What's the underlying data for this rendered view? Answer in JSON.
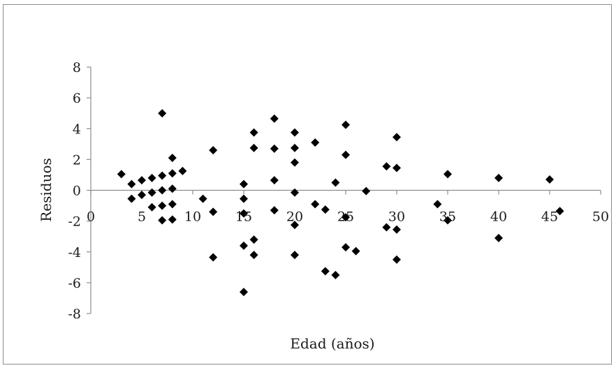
{
  "chart_data": {
    "type": "scatter",
    "title": "",
    "xlabel": "Edad (años)",
    "ylabel": "Residuos",
    "xlim": [
      0,
      50
    ],
    "ylim": [
      -8,
      8
    ],
    "x_ticks": [
      0,
      5,
      10,
      15,
      20,
      25,
      30,
      35,
      40,
      45,
      50
    ],
    "y_ticks": [
      8,
      6,
      4,
      2,
      0,
      -2,
      -4,
      -6,
      -8
    ],
    "grid": false,
    "marker": "diamond",
    "marker_color": "#000000",
    "series": [
      {
        "points": [
          {
            "x": 3,
            "y": 1.05
          },
          {
            "x": 4,
            "y": 0.4
          },
          {
            "x": 4,
            "y": -0.55
          },
          {
            "x": 5,
            "y": 0.65
          },
          {
            "x": 5,
            "y": -0.3
          },
          {
            "x": 6,
            "y": 0.8
          },
          {
            "x": 6,
            "y": -0.15
          },
          {
            "x": 6,
            "y": -1.1
          },
          {
            "x": 7,
            "y": 5.0
          },
          {
            "x": 7,
            "y": 0.95
          },
          {
            "x": 7,
            "y": 0.0
          },
          {
            "x": 7,
            "y": -1.0
          },
          {
            "x": 7,
            "y": -1.95
          },
          {
            "x": 8,
            "y": 2.1
          },
          {
            "x": 8,
            "y": 1.1
          },
          {
            "x": 8,
            "y": 0.1
          },
          {
            "x": 8,
            "y": -0.9
          },
          {
            "x": 8,
            "y": -1.9
          },
          {
            "x": 9,
            "y": 1.25
          },
          {
            "x": 11,
            "y": -0.55
          },
          {
            "x": 12,
            "y": 2.6
          },
          {
            "x": 12,
            "y": -1.4
          },
          {
            "x": 12,
            "y": -4.35
          },
          {
            "x": 15,
            "y": 0.4
          },
          {
            "x": 15,
            "y": -0.55
          },
          {
            "x": 15,
            "y": -1.5
          },
          {
            "x": 15,
            "y": -3.6
          },
          {
            "x": 15,
            "y": -6.6
          },
          {
            "x": 16,
            "y": 3.75
          },
          {
            "x": 16,
            "y": 2.75
          },
          {
            "x": 16,
            "y": -3.2
          },
          {
            "x": 16,
            "y": -4.2
          },
          {
            "x": 18,
            "y": 4.65
          },
          {
            "x": 18,
            "y": 2.7
          },
          {
            "x": 18,
            "y": 0.65
          },
          {
            "x": 18,
            "y": -1.3
          },
          {
            "x": 20,
            "y": 3.75
          },
          {
            "x": 20,
            "y": 2.75
          },
          {
            "x": 20,
            "y": 1.8
          },
          {
            "x": 20,
            "y": -0.15
          },
          {
            "x": 20,
            "y": -2.25
          },
          {
            "x": 20,
            "y": -4.2
          },
          {
            "x": 22,
            "y": 3.1
          },
          {
            "x": 22,
            "y": -0.9
          },
          {
            "x": 23,
            "y": -1.25
          },
          {
            "x": 23,
            "y": -5.25
          },
          {
            "x": 24,
            "y": 0.5
          },
          {
            "x": 24,
            "y": -5.5
          },
          {
            "x": 25,
            "y": 4.25
          },
          {
            "x": 25,
            "y": 2.3
          },
          {
            "x": 25,
            "y": -1.75
          },
          {
            "x": 25,
            "y": -3.7
          },
          {
            "x": 26,
            "y": -3.95
          },
          {
            "x": 27,
            "y": -0.05
          },
          {
            "x": 29,
            "y": 1.55
          },
          {
            "x": 29,
            "y": -2.4
          },
          {
            "x": 30,
            "y": 3.45
          },
          {
            "x": 30,
            "y": 1.45
          },
          {
            "x": 30,
            "y": -2.55
          },
          {
            "x": 30,
            "y": -4.5
          },
          {
            "x": 34,
            "y": -0.9
          },
          {
            "x": 35,
            "y": 1.05
          },
          {
            "x": 35,
            "y": -1.95
          },
          {
            "x": 40,
            "y": 0.8
          },
          {
            "x": 40,
            "y": -3.1
          },
          {
            "x": 45,
            "y": 0.7
          },
          {
            "x": 46,
            "y": -1.35
          }
        ]
      }
    ]
  }
}
